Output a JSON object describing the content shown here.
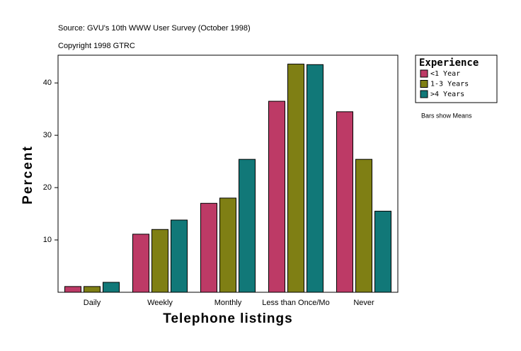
{
  "chart_data": {
    "type": "bar",
    "title": "Source: GVU's 10th WWW User Survey (October 1998)",
    "subtitle": "Copyright 1998 GTRC",
    "x_label": "Telephone listings",
    "y_label": "Percent",
    "annotation": "Bars show Means",
    "legend_title": "Experience",
    "legend_position": "right",
    "categories": [
      "Daily",
      "Weekly",
      "Monthly",
      "Less than Once/Mo",
      "Never"
    ],
    "series": [
      {
        "name": "<1 Year",
        "color": "#bd3a66",
        "values": [
          1.1,
          11.1,
          17.0,
          36.5,
          34.5
        ]
      },
      {
        "name": "1-3 Years",
        "color": "#7f7f14",
        "values": [
          1.1,
          12.0,
          18.0,
          43.6,
          25.4
        ]
      },
      {
        "name": ">4 Years",
        "color": "#117878",
        "values": [
          1.9,
          13.8,
          25.4,
          43.5,
          15.5
        ]
      }
    ],
    "ylim": [
      0,
      45.3
    ],
    "yticks": [
      10,
      20,
      30,
      40
    ],
    "grid": false
  }
}
